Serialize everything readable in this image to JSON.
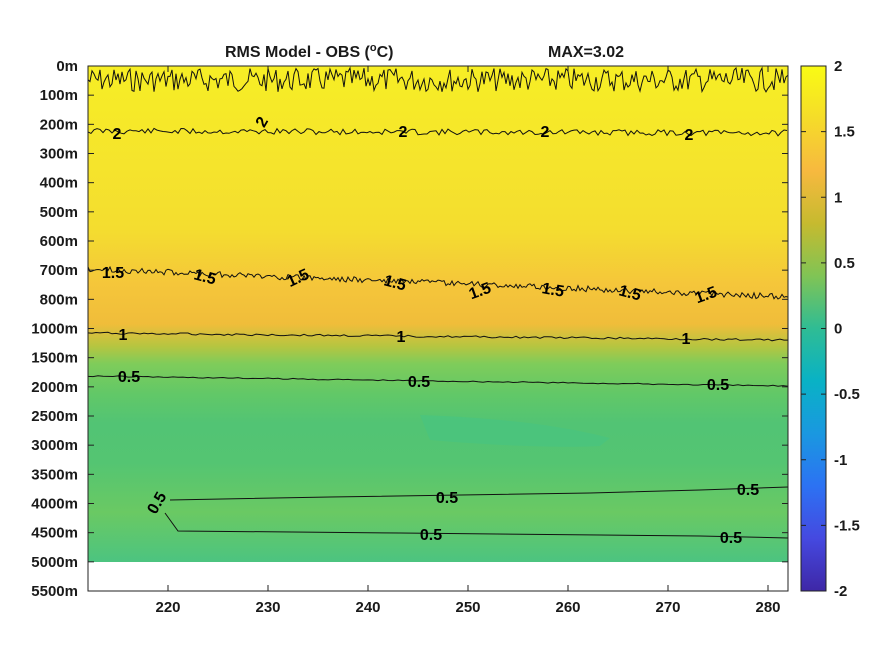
{
  "chart_data": {
    "type": "heatmap",
    "title": "RMS Model - OBS (",
    "title_superscript": "o",
    "title_unit": "C)",
    "max_label": "MAX=3.02",
    "x_ticks": [
      220,
      230,
      240,
      250,
      260,
      270,
      280
    ],
    "xlim": [
      212,
      282
    ],
    "y_tick_labels": [
      "0m",
      "100m",
      "200m",
      "300m",
      "400m",
      "500m",
      "600m",
      "700m",
      "800m",
      "1000m",
      "1500m",
      "2000m",
      "2500m",
      "3000m",
      "3500m",
      "4000m",
      "4500m",
      "5000m",
      "5500m"
    ],
    "colorbar": {
      "ticks": [
        "2",
        "1.5",
        "1",
        "0.5",
        "0",
        "-0.5",
        "-1",
        "-1.5",
        "-2"
      ],
      "range": [
        -2,
        2
      ]
    },
    "contours": [
      {
        "level": 2,
        "label": "2",
        "y_label_index": 2.3
      },
      {
        "level": 1.5,
        "label": "1.5",
        "y_label_index": 7.0
      },
      {
        "level": 1,
        "label": "1",
        "y_label_index": 9.2
      },
      {
        "level": 0.5,
        "label": "0.5",
        "y_label_index": 10.8
      },
      {
        "level": 0.5,
        "label": "0.5",
        "y_label_index": 14.9
      },
      {
        "level": 0.5,
        "label": "0.5",
        "y_label_index": 16.1
      }
    ],
    "colors": {
      "bright_yellow": "#f5e92b",
      "yellow": "#f3e22e",
      "orange_yellow": "#f5c33a",
      "light_green": "#7fcc5a",
      "green": "#60c86a",
      "teal_green": "#4cc480",
      "colormap": [
        "#3e26a8",
        "#4746eb",
        "#2c7cf6",
        "#1c9fdd",
        "#08b6c0",
        "#30c09a",
        "#6ac25f",
        "#b0bd30",
        "#e2b93a",
        "#fbcf2e",
        "#f9f920"
      ]
    }
  }
}
